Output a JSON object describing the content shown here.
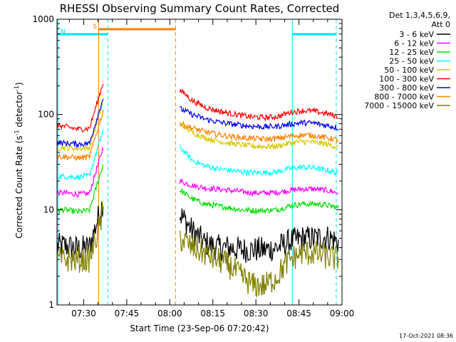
{
  "chart_data": {
    "type": "line",
    "title": "RHESSI Observing Summary Count Rates, Corrected",
    "xlabel": "Start Time (23-Sep-06 07:20:42)",
    "ylabel_parts": {
      "main": "Corrected Count Rate (s",
      "sup1": "-1",
      "mid": " detector",
      "sup2": "-1",
      "end": ")"
    },
    "yscale": "log",
    "ylim": [
      1,
      1000
    ],
    "xlim": [
      "07:20:42",
      "09:00:00"
    ],
    "x_ticks": [
      "07:30",
      "07:45",
      "08:00",
      "08:15",
      "08:30",
      "08:45",
      "09:00"
    ],
    "x_tick_minutes": [
      450,
      465,
      480,
      495,
      510,
      525,
      540
    ],
    "y_ticks": [
      1,
      10,
      100,
      1000
    ],
    "legend_header": [
      "Det 1,3,4,5,6,9,",
      "Att 0"
    ],
    "legend_placement": "right",
    "footer_date": "17-Oct-2021 08:36",
    "markers": [
      {
        "label": "S",
        "color": "#ff8000",
        "start": 455.2,
        "end": 482.0
      },
      {
        "label": "N",
        "color": "#00e5ee",
        "start": 440.7,
        "end": 458.4
      },
      {
        "label": "",
        "color": "#00e5ee",
        "start": 522.7,
        "end": 538.0
      }
    ],
    "gap": [
      457.0,
      483.5
    ],
    "series": [
      {
        "name": "3 - 6 keV",
        "color": "#000000",
        "pre": [
          4.2,
          4.0,
          4.2,
          3.9,
          4.1
        ],
        "post": [
          9.0,
          6.0,
          4.5,
          4.0,
          4.0,
          3.8,
          3.8,
          3.8,
          4.0,
          4.6,
          5.0,
          5.0,
          5.2,
          4.6
        ]
      },
      {
        "name": "6 - 12 keV",
        "color": "#ff00ff",
        "pre": [
          17,
          15,
          15,
          14.5,
          15
        ],
        "post": [
          20,
          18,
          17,
          16.5,
          16,
          15.5,
          15,
          15,
          15.2,
          16,
          16.5,
          16.5,
          16,
          15
        ]
      },
      {
        "name": "12 - 25 keV",
        "color": "#00e000",
        "pre": [
          10.5,
          9.5,
          10,
          9.5,
          10
        ],
        "post": [
          16,
          13,
          11.5,
          11,
          10.5,
          10,
          9.8,
          9.8,
          10,
          11,
          11.5,
          11.5,
          11.2,
          10.5
        ]
      },
      {
        "name": "25 - 50 keV",
        "color": "#00ffff",
        "pre": [
          24,
          22,
          22.5,
          22,
          23
        ],
        "post": [
          45,
          33,
          29,
          27,
          26,
          25,
          24.5,
          24.5,
          25,
          27,
          28,
          27.5,
          26,
          24
        ]
      },
      {
        "name": "50 - 100 keV",
        "color": "#d8c800",
        "pre": [
          48,
          44,
          45,
          44,
          45
        ],
        "post": [
          80,
          65,
          57,
          53,
          50,
          48,
          46.5,
          46,
          46.5,
          50,
          52,
          51,
          49,
          45
        ]
      },
      {
        "name": "100 - 300 keV",
        "color": "#ff0000",
        "pre": [
          85,
          80,
          75,
          70,
          72
        ],
        "post": [
          180,
          140,
          120,
          110,
          103,
          98,
          94,
          93,
          95,
          105,
          110,
          108,
          102,
          95
        ]
      },
      {
        "name": "300 - 800 keV",
        "color": "#0000ff",
        "pre": [
          56,
          52,
          50,
          49,
          50
        ],
        "post": [
          115,
          100,
          90,
          84,
          80,
          77,
          75,
          74,
          75,
          79,
          82,
          81,
          77,
          72
        ]
      },
      {
        "name": "800 - 7000 keV",
        "color": "#ff8000",
        "pre": [
          40,
          37,
          36,
          35,
          36
        ],
        "post": [
          80,
          72,
          66,
          62,
          59,
          57,
          56,
          55,
          56,
          59,
          61,
          60,
          57,
          54
        ]
      },
      {
        "name": "7000 - 15000 keV",
        "color": "#808000",
        "pre": [
          3.0,
          3.0,
          3.0,
          3.0,
          3.0
        ],
        "post": [
          5.0,
          4.0,
          3.5,
          3.0,
          2.6,
          2.0,
          1.6,
          1.6,
          2.0,
          3.0,
          3.5,
          3.5,
          3.2,
          3.0
        ]
      }
    ]
  }
}
